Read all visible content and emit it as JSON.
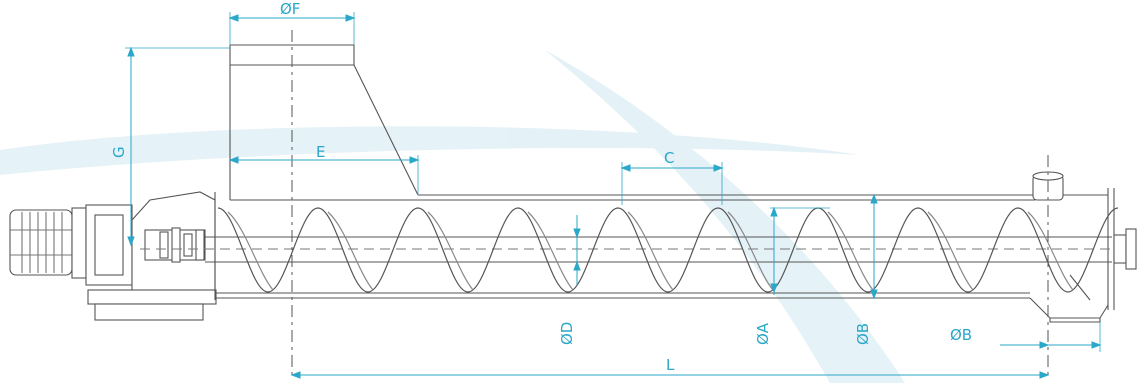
{
  "colors": {
    "line": "#555555",
    "dimension": "#2aa7c9",
    "watermark": "#cfe7f1"
  },
  "labels": {
    "diameter_f": "ØF",
    "g": "G",
    "e": "E",
    "c": "C",
    "diameter_d": "ØD",
    "diameter_a": "ØA",
    "diameter_b_vertical": "ØB",
    "diameter_b_outlet": "ØB",
    "length": "L"
  }
}
